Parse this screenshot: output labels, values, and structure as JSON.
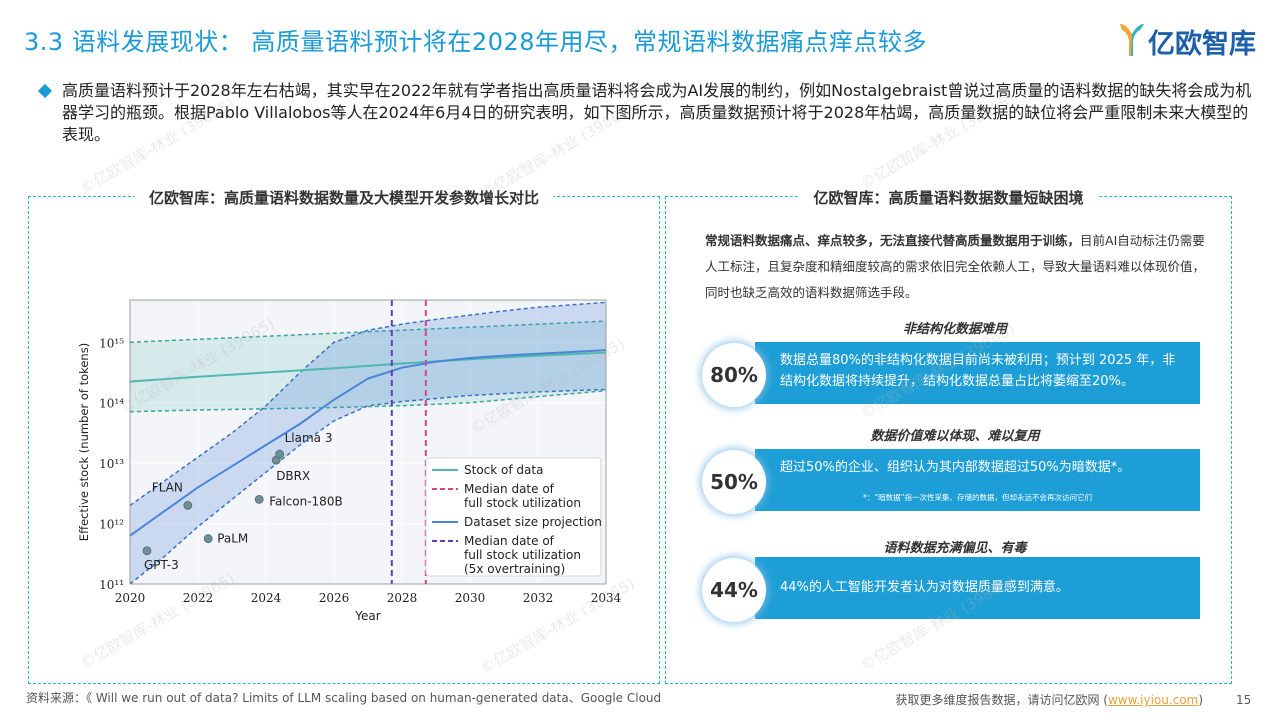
{
  "header": {
    "title": "3.3 语料发展现状： 高质量语料预计将在2028年用尽，常规语料数据痛点痒点较多",
    "logo_text": "亿欧智库"
  },
  "intro": "高质量语料预计于2028年左右枯竭，其实早在2022年就有学者指出高质量语料将会成为AI发展的制约，例如Nostalgebraist曾说过高质量的语料数据的缺失将会成为机器学习的瓶颈。根据Pablo Villalobos等人在2024年6月4日的研究表明，如下图所示，高质量数据预计将于2028年枯竭，高质量数据的缺位将会严重限制未来大模型的表现。",
  "left_panel": {
    "title": "亿欧智库：高质量语料数据数量及大模型开发参数增长对比"
  },
  "right_panel": {
    "title": "亿欧智库：高质量语料数据数量短缺困境",
    "desc_bold": "常规语料数据痛点、痒点较多，无法直接代替高质量数据用于训练，",
    "desc_rest": "目前AI自动标注仍需要人工标注，且复杂度和精细度较高的需求依旧完全依赖人工，导致大量语料难以体现价值，同时也缺乏高效的语料数据筛选手段。",
    "items": [
      {
        "title": "非结构化数据难用",
        "pct": "80%",
        "text": "数据总量80%的非结构化数据目前尚未被利用；预计到 2025 年，非结构化数据将持续提升，结构化数据总量占比将萎缩至20%。",
        "note": ""
      },
      {
        "title": "数据价值难以体现、难以复用",
        "pct": "50%",
        "text": "超过50%的企业、组织认为其内部数据超过50%为暗数据*。",
        "note": "*：“暗数据”指一次性采集、存储的数据，但却永远不会再次访问它们"
      },
      {
        "title": "语料数据充满偏见、有毒",
        "pct": "44%",
        "text": "44%的人工智能开发者认为对数据质量感到满意。",
        "note": ""
      }
    ]
  },
  "footer": {
    "source": "资料来源：《 Will we run out of data? Limits of LLM scaling based on human-generated data、Google Cloud",
    "visit_prefix": "获取更多维度报告数据，请访问亿欧网 (",
    "visit_link": "www.iyiou.com",
    "visit_suffix": ")",
    "page": "15"
  },
  "watermark": "©亿欧智库-林业 (39865)",
  "colors": {
    "accent": "#1a9ad6",
    "stock": "#4fb8b0",
    "projection": "#4a86d8",
    "median_full": "#d9438a",
    "median_5x": "#5b3fb5"
  },
  "chart_data": {
    "type": "line",
    "xlabel": "Year",
    "ylabel": "Effective stock (number of tokens)",
    "xlim": [
      2020,
      2034
    ],
    "ylim_log10": [
      11,
      15.7
    ],
    "y_scale": "log",
    "x_ticks": [
      "2020",
      "2022",
      "2024",
      "2026",
      "2028",
      "2030",
      "2032",
      "2034"
    ],
    "y_ticks": [
      {
        "exp": 11,
        "label": "10¹¹"
      },
      {
        "exp": 12,
        "label": "10¹²"
      },
      {
        "exp": 13,
        "label": "10¹³"
      },
      {
        "exp": 14,
        "label": "10¹⁴"
      },
      {
        "exp": 15,
        "label": "10¹⁵"
      }
    ],
    "stock_of_data": {
      "name": "Stock of data",
      "x": [
        2020,
        2022,
        2024,
        2026,
        2028,
        2030,
        2032,
        2034
      ],
      "log10_median": [
        14.35,
        14.43,
        14.5,
        14.57,
        14.65,
        14.72,
        14.78,
        14.83
      ],
      "log10_low": [
        13.85,
        13.88,
        13.9,
        13.92,
        13.95,
        14.0,
        14.1,
        14.2
      ],
      "log10_high": [
        15.0,
        15.05,
        15.1,
        15.15,
        15.2,
        15.25,
        15.3,
        15.35
      ]
    },
    "dataset_projection": {
      "name": "Dataset size projection",
      "x": [
        2020,
        2021,
        2022,
        2023,
        2024,
        2025,
        2026,
        2027,
        2028,
        2029,
        2030,
        2031,
        2032,
        2033,
        2034
      ],
      "log10_median": [
        11.8,
        12.2,
        12.6,
        12.95,
        13.3,
        13.65,
        14.05,
        14.4,
        14.58,
        14.68,
        14.74,
        14.78,
        14.81,
        14.84,
        14.87
      ],
      "log10_low": [
        11.0,
        11.45,
        11.95,
        12.4,
        12.85,
        13.3,
        13.7,
        13.95,
        14.02,
        14.07,
        14.12,
        14.15,
        14.18,
        14.2,
        14.22
      ],
      "log10_high": [
        12.3,
        12.7,
        13.1,
        13.5,
        13.95,
        14.5,
        15.0,
        15.2,
        15.3,
        15.38,
        15.45,
        15.52,
        15.58,
        15.62,
        15.66
      ]
    },
    "median_full": {
      "name": "Median date of full stock utilization",
      "x": 2028.7
    },
    "median_5x": {
      "name": "Median date of full stock utilization (5x overtraining)",
      "x": 2027.7
    },
    "models": [
      {
        "name": "GPT-3",
        "x": 2020.5,
        "log10": 11.55
      },
      {
        "name": "FLAN",
        "x": 2021.7,
        "log10": 12.3
      },
      {
        "name": "PaLM",
        "x": 2022.3,
        "log10": 11.75
      },
      {
        "name": "Falcon-180B",
        "x": 2023.8,
        "log10": 12.4
      },
      {
        "name": "DBRX",
        "x": 2024.3,
        "log10": 13.05
      },
      {
        "name": "Llama 3",
        "x": 2024.4,
        "log10": 13.15
      }
    ],
    "legend": [
      {
        "label": "Stock of data",
        "style": "solid",
        "color": "#4fb8b0"
      },
      {
        "label": "Median date of\nfull stock utilization",
        "style": "dashed",
        "color": "#d9438a"
      },
      {
        "label": "Dataset size projection",
        "style": "solid",
        "color": "#4a86d8"
      },
      {
        "label": "Median date of\nfull stock utilization\n(5x overtraining)",
        "style": "dashed",
        "color": "#5b3fb5"
      }
    ],
    "legend_position": "bottom-right"
  }
}
